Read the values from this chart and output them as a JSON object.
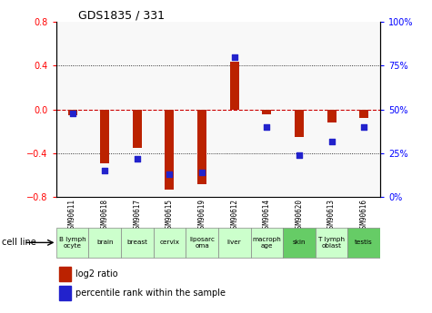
{
  "title": "GDS1835 / 331",
  "samples": [
    "GSM90611",
    "GSM90618",
    "GSM90617",
    "GSM90615",
    "GSM90619",
    "GSM90612",
    "GSM90614",
    "GSM90620",
    "GSM90613",
    "GSM90616"
  ],
  "cell_lines": [
    "B lymph\nocyte",
    "brain",
    "breast",
    "cervix",
    "liposarc\noma",
    "liver",
    "macroph\nage",
    "skin",
    "T lymph\noblast",
    "testis"
  ],
  "cell_line_colors": [
    "#ccffcc",
    "#ccffcc",
    "#ccffcc",
    "#ccffcc",
    "#ccffcc",
    "#ccffcc",
    "#ccffcc",
    "#66cc66",
    "#ccffcc",
    "#66cc66"
  ],
  "log2_ratio": [
    -0.05,
    -0.49,
    -0.35,
    -0.73,
    -0.68,
    0.44,
    -0.04,
    -0.25,
    -0.12,
    -0.08
  ],
  "percentile_rank": [
    48,
    15,
    22,
    13,
    14,
    80,
    40,
    24,
    32,
    40
  ],
  "ylim": [
    -0.8,
    0.8
  ],
  "yticks_left": [
    -0.8,
    -0.4,
    0.0,
    0.4,
    0.8
  ],
  "yticks_right": [
    0,
    25,
    50,
    75,
    100
  ],
  "bar_color": "#bb2200",
  "dot_color": "#2222cc",
  "zero_line_color": "#cc0000",
  "grid_color": "#000000",
  "plot_bg": "#f8f8f8"
}
